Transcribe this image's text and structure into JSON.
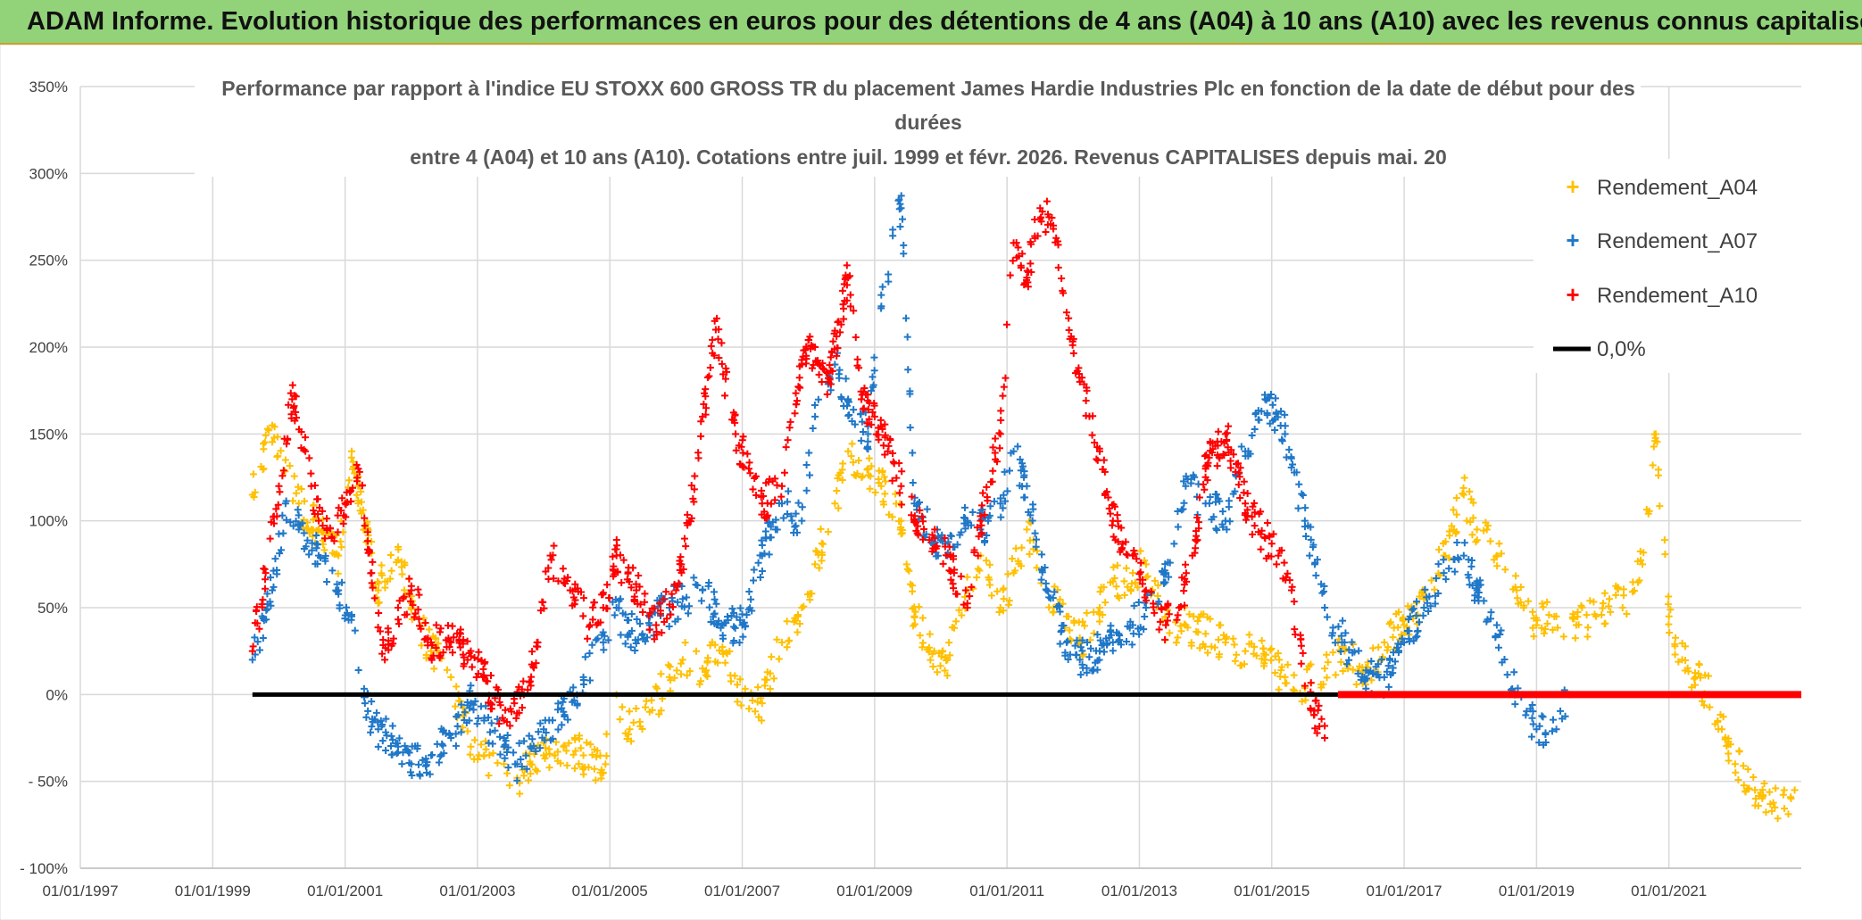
{
  "banner": {
    "text": "ADAM Informe. Evolution historique des performances en euros pour des détentions de 4 ans (A04) à 10 ans (A10) avec les revenus connus capitalisés",
    "background": "#92d37a"
  },
  "chart_data": {
    "type": "scatter",
    "title_lines": [
      "Performance par rapport à l'indice EU STOXX 600 GROSS TR  du placement James Hardie Industries Plc en fonction de la date de début pour des",
      "durées",
      "entre 4 (A04) et 10 ans (A10). Cotations entre juil. 1999 et févr. 2026. Revenus CAPITALISES depuis mai. 20"
    ],
    "xlabel": "",
    "ylabel": "",
    "x_range": [
      1997.0,
      2023.0
    ],
    "ylim": [
      -100,
      350
    ],
    "y_ticks": [
      -100,
      -50,
      0,
      50,
      100,
      150,
      200,
      250,
      300,
      350
    ],
    "y_tick_labels": [
      "- 100%",
      "- 50%",
      "0%",
      "50%",
      "100%",
      "150%",
      "200%",
      "250%",
      "300%",
      "350%"
    ],
    "x_ticks": [
      1997,
      1999,
      2001,
      2003,
      2005,
      2007,
      2009,
      2011,
      2013,
      2015,
      2017,
      2019,
      2021
    ],
    "x_tick_labels": [
      "01/01/1997",
      "01/01/1999",
      "01/01/2001",
      "01/01/2003",
      "01/01/2005",
      "01/01/2007",
      "01/01/2009",
      "01/01/2011",
      "01/01/2013",
      "01/01/2015",
      "01/01/2017",
      "01/01/2019",
      "01/01/2021"
    ],
    "grid": true,
    "legend_position": "top-right",
    "series": [
      {
        "name": "Rendement_A04",
        "color": "#ffc000",
        "marker": "plus",
        "x": [
          1999.6,
          1999.9,
          2000.1,
          2000.3,
          2000.6,
          2000.9,
          2001.1,
          2001.3,
          2001.5,
          2001.8,
          2002.0,
          2002.3,
          2002.6,
          2002.9,
          2003.1,
          2003.4,
          2003.6,
          2003.8,
          2004.0,
          2004.3,
          2004.6,
          2004.9,
          2005.1,
          2005.3,
          2005.6,
          2005.9,
          2006.1,
          2006.4,
          2006.7,
          2007.0,
          2007.3,
          2007.6,
          2007.9,
          2008.1,
          2008.4,
          2008.6,
          2008.9,
          2009.1,
          2009.4,
          2009.6,
          2009.9,
          2010.1,
          2010.4,
          2010.6,
          2010.9,
          2011.1,
          2011.3,
          2011.6,
          2011.9,
          2012.1,
          2012.4,
          2012.6,
          2012.9,
          2013.1,
          2013.4,
          2013.7,
          2014.0,
          2014.3,
          2014.6,
          2014.9,
          2015.2,
          2015.5,
          2015.8,
          2016.1,
          2016.4,
          2016.7,
          2017.0,
          2017.3,
          2017.6,
          2017.9,
          2018.1,
          2018.4,
          2018.7,
          2019.0,
          2019.3,
          2019.6,
          2019.9,
          2020.1,
          2020.3,
          2020.6,
          2020.8,
          2021.0,
          2021.2,
          2021.4,
          2021.6,
          2021.8,
          2022.0,
          2022.3,
          2022.6,
          2022.9
        ],
        "y": [
          115,
          155,
          135,
          110,
          95,
          80,
          140,
          95,
          60,
          85,
          50,
          25,
          10,
          -30,
          -35,
          -40,
          -48,
          -40,
          -35,
          -30,
          -35,
          -45,
          0,
          -20,
          -10,
          10,
          20,
          15,
          25,
          0,
          -5,
          30,
          50,
          75,
          110,
          140,
          130,
          120,
          100,
          45,
          25,
          20,
          60,
          80,
          50,
          70,
          95,
          60,
          45,
          30,
          50,
          65,
          70,
          75,
          40,
          40,
          35,
          30,
          25,
          20,
          10,
          5,
          15,
          25,
          10,
          30,
          40,
          55,
          80,
          115,
          95,
          80,
          60,
          40,
          45,
          40,
          45,
          55,
          50,
          75,
          150,
          45,
          20,
          10,
          0,
          -20,
          -40,
          -55,
          -65,
          -55
        ]
      },
      {
        "name": "Rendement_A07",
        "color": "#1f77c8",
        "marker": "plus",
        "x": [
          1999.6,
          1999.9,
          2000.1,
          2000.3,
          2000.6,
          2000.9,
          2001.1,
          2001.3,
          2001.5,
          2001.8,
          2002.0,
          2002.3,
          2002.6,
          2002.9,
          2003.1,
          2003.4,
          2003.6,
          2003.8,
          2004.0,
          2004.3,
          2004.6,
          2004.9,
          2005.1,
          2005.3,
          2005.6,
          2005.9,
          2006.1,
          2006.4,
          2006.7,
          2007.0,
          2007.3,
          2007.6,
          2007.9,
          2008.1,
          2008.4,
          2008.6,
          2008.9,
          2009.1,
          2009.4,
          2009.6,
          2009.9,
          2010.1,
          2010.4,
          2010.6,
          2010.9,
          2011.1,
          2011.3,
          2011.6,
          2011.9,
          2012.1,
          2012.4,
          2012.6,
          2012.9,
          2013.1,
          2013.4,
          2013.7,
          2014.0,
          2014.3,
          2014.6,
          2014.9,
          2015.2,
          2015.5,
          2015.8,
          2016.1,
          2016.4,
          2016.7,
          2017.0,
          2017.3,
          2017.6,
          2017.9,
          2018.1,
          2018.4,
          2018.7,
          2019.0,
          2019.3,
          2019.5
        ],
        "y": [
          20,
          60,
          110,
          95,
          80,
          60,
          45,
          -5,
          -20,
          -30,
          -40,
          -35,
          -25,
          -5,
          -15,
          -30,
          -40,
          -30,
          -20,
          -10,
          10,
          30,
          50,
          35,
          40,
          50,
          55,
          60,
          40,
          40,
          80,
          110,
          100,
          160,
          190,
          170,
          150,
          230,
          280,
          110,
          90,
          80,
          100,
          95,
          110,
          140,
          120,
          60,
          30,
          20,
          25,
          30,
          40,
          50,
          70,
          120,
          110,
          100,
          140,
          170,
          150,
          100,
          50,
          30,
          10,
          10,
          30,
          50,
          70,
          80,
          60,
          40,
          0,
          -20,
          -20,
          0
        ]
      },
      {
        "name": "Rendement_A10",
        "color": "#ff0000",
        "marker": "plus",
        "x": [
          1999.6,
          1999.8,
          2000.0,
          2000.2,
          2000.4,
          2000.6,
          2000.8,
          2001.0,
          2001.2,
          2001.4,
          2001.6,
          2001.8,
          2002.0,
          2002.3,
          2002.6,
          2002.9,
          2003.1,
          2003.4,
          2003.7,
          2003.9,
          2004.1,
          2004.4,
          2004.7,
          2004.9,
          2005.1,
          2005.4,
          2005.7,
          2006.0,
          2006.2,
          2006.4,
          2006.6,
          2006.9,
          2007.1,
          2007.3,
          2007.6,
          2007.9,
          2008.1,
          2008.3,
          2008.6,
          2008.8,
          2009.0,
          2009.2,
          2009.4,
          2009.6,
          2009.9,
          2010.2,
          2010.4,
          2010.6,
          2010.9,
          2011.1,
          2011.3,
          2011.5,
          2011.7,
          2011.9,
          2012.1,
          2012.4,
          2012.6,
          2012.9,
          2013.1,
          2013.4,
          2013.6,
          2013.8,
          2014.0,
          2014.3,
          2014.6,
          2014.9,
          2015.1,
          2015.3,
          2015.5,
          2015.8
        ],
        "y": [
          25,
          70,
          120,
          170,
          140,
          100,
          90,
          110,
          130,
          70,
          20,
          50,
          60,
          30,
          30,
          25,
          10,
          -15,
          0,
          30,
          80,
          60,
          40,
          50,
          80,
          60,
          40,
          60,
          100,
          160,
          210,
          150,
          130,
          110,
          120,
          190,
          200,
          180,
          240,
          170,
          160,
          140,
          120,
          100,
          90,
          70,
          50,
          100,
          150,
          260,
          240,
          280,
          270,
          220,
          180,
          140,
          100,
          80,
          60,
          40,
          50,
          80,
          130,
          150,
          110,
          90,
          80,
          60,
          5,
          -25
        ]
      },
      {
        "name": "0,0%",
        "color": "#000000",
        "marker": "line",
        "x": [
          1999.6,
          2016.0
        ],
        "y": [
          0,
          0
        ]
      },
      {
        "name": "Rendement_A10 (flat)",
        "color": "#ff0000",
        "marker": "flat",
        "x": [
          2016.0,
          2023.0
        ],
        "y": [
          0,
          0
        ]
      }
    ],
    "legend": [
      "Rendement_A04",
      "Rendement_A07",
      "Rendement_A10",
      "0,0%"
    ]
  }
}
